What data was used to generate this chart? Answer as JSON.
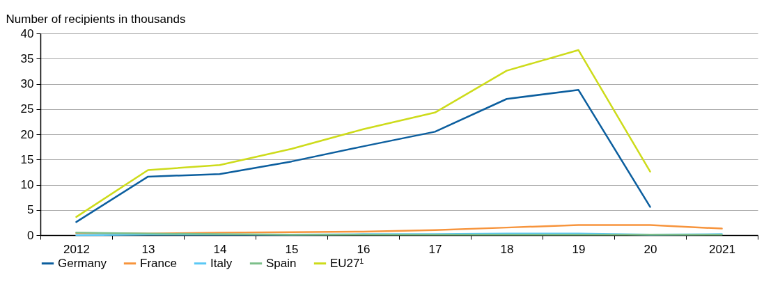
{
  "chart_data": {
    "type": "line",
    "ylabel": "Number of recipients in thousands",
    "categories": [
      "2012",
      "13",
      "14",
      "15",
      "16",
      "17",
      "18",
      "19",
      "20",
      "2021"
    ],
    "series": [
      {
        "name": "Germany",
        "color": "#0b5e9e",
        "values": [
          2.6,
          11.6,
          12.1,
          14.6,
          17.6,
          20.5,
          27.0,
          28.8,
          5.6,
          null
        ]
      },
      {
        "name": "France",
        "color": "#f7943c",
        "values": [
          0.4,
          0.3,
          0.5,
          0.6,
          0.7,
          1.0,
          1.5,
          2.0,
          2.0,
          1.3
        ]
      },
      {
        "name": "Italy",
        "color": "#5bc8f5",
        "values": [
          0.0,
          0.1,
          0.1,
          0.1,
          0.2,
          0.2,
          0.3,
          0.3,
          0.1,
          0.2
        ]
      },
      {
        "name": "Spain",
        "color": "#7dbf8a",
        "values": [
          0.5,
          0.3,
          0.2,
          0.1,
          0.1,
          0.1,
          0.1,
          0.1,
          0.1,
          0.1
        ]
      },
      {
        "name": "EU27¹",
        "color": "#cddb1a",
        "values": [
          3.6,
          12.9,
          13.9,
          17.1,
          21.0,
          24.3,
          32.6,
          36.7,
          12.6,
          null
        ]
      }
    ],
    "ylim": [
      0,
      40
    ],
    "yticks": [
      0,
      5,
      10,
      15,
      20,
      25,
      30,
      35,
      40
    ],
    "grid": "y",
    "legend": "bottom",
    "line_style": "solid",
    "marker": "none"
  }
}
